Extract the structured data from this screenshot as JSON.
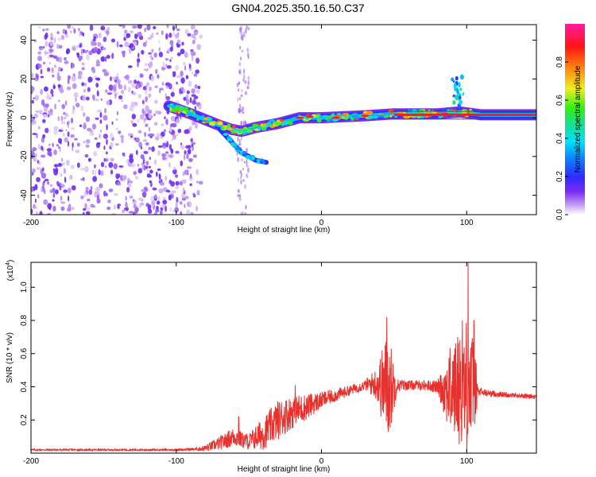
{
  "figure": {
    "title": "GN04.2025.350.16.50.C37"
  },
  "chart_data": [
    {
      "type": "heatmap",
      "name": "spectrogram",
      "xlabel": "Height of straight line (km)",
      "ylabel": "Frequency (Hz)",
      "xlim": [
        -200,
        148
      ],
      "ylim": [
        -50,
        48
      ],
      "x_ticks": [
        -200,
        -100,
        0,
        100
      ],
      "y_ticks": [
        40,
        20,
        0,
        -20,
        -40
      ],
      "grid": false,
      "colorbar": {
        "label": "Normalized spectral amplitude",
        "range": [
          0,
          1
        ],
        "ticks": [
          "0.0",
          "0.2",
          "0.4",
          "0.6",
          "0.8"
        ],
        "tick_values": [
          0,
          0.2,
          0.4,
          0.6,
          0.8
        ],
        "colormap": "rainbow (white-violet-blue-cyan-green-yellow-red-magenta)"
      },
      "features": [
        {
          "description": "broadband noise region",
          "x_range": [
            -200,
            -83
          ],
          "freq_range": [
            -50,
            48
          ],
          "amplitude": 0.1
        },
        {
          "description": "vertical noise streak",
          "x_range": [
            -58,
            -50
          ],
          "freq_range": [
            -50,
            48
          ],
          "amplitude": 0.05
        },
        {
          "description": "dominant tone track",
          "points": [
            [
              -105,
              6
            ],
            [
              -90,
              2
            ],
            [
              -70,
              -4
            ],
            [
              -62,
              -6
            ],
            [
              -55,
              -7
            ],
            [
              -45,
              -5
            ],
            [
              -30,
              -3
            ],
            [
              -15,
              0
            ],
            [
              0,
              0
            ],
            [
              30,
              1
            ],
            [
              50,
              2
            ],
            [
              80,
              2
            ],
            [
              95,
              3
            ],
            [
              110,
              1.5
            ],
            [
              148,
              1.5
            ]
          ],
          "amplitude_range": [
            0.2,
            1.0
          ]
        },
        {
          "description": "diverging branch",
          "points": [
            [
              -70,
              -6
            ],
            [
              -60,
              -14
            ],
            [
              -55,
              -18
            ],
            [
              -45,
              -22
            ],
            [
              -38,
              -23
            ]
          ],
          "amplitude_range": [
            0.2,
            0.4
          ]
        },
        {
          "description": "spike near 95 km",
          "points": [
            [
              95,
              2
            ],
            [
              95,
              21
            ]
          ],
          "amplitude_range": [
            0.2,
            0.5
          ]
        }
      ]
    },
    {
      "type": "line",
      "name": "snr",
      "xlabel": "Height of straight line (km)",
      "ylabel": "SNR (10 * v/v)",
      "y_scale_note": "(x10^4)",
      "y_scale_base": "(x10",
      "y_scale_exp": "4",
      "y_scale_close": ")",
      "xlim": [
        -200,
        148
      ],
      "ylim": [
        0,
        1.15
      ],
      "x_ticks": [
        -200,
        -100,
        0,
        100
      ],
      "y_ticks": [
        0.2,
        0.4,
        0.6,
        0.8,
        1.0
      ],
      "grid": false,
      "series": [
        {
          "name": "SNR",
          "color": "#e8302c",
          "envelope": {
            "x": [
              -200,
              -150,
              -100,
              -85,
              -80,
              -70,
              -60,
              -55,
              -50,
              -40,
              -30,
              -20,
              -10,
              0,
              10,
              20,
              30,
              38,
              45,
              48,
              52,
              60,
              70,
              80,
              88,
              95,
              100,
              105,
              108,
              115,
              130,
              148
            ],
            "mean": [
              0.02,
              0.02,
              0.02,
              0.025,
              0.03,
              0.06,
              0.1,
              0.08,
              0.07,
              0.12,
              0.2,
              0.25,
              0.28,
              0.32,
              0.35,
              0.38,
              0.41,
              0.42,
              0.4,
              0.4,
              0.41,
              0.41,
              0.41,
              0.4,
              0.38,
              0.4,
              0.38,
              0.4,
              0.37,
              0.36,
              0.35,
              0.34
            ],
            "spread": [
              0.005,
              0.005,
              0.005,
              0.01,
              0.02,
              0.04,
              0.06,
              0.05,
              0.05,
              0.1,
              0.12,
              0.1,
              0.08,
              0.05,
              0.04,
              0.03,
              0.03,
              0.1,
              0.33,
              0.25,
              0.04,
              0.03,
              0.03,
              0.04,
              0.25,
              0.35,
              0.45,
              0.3,
              0.03,
              0.02,
              0.015,
              0.015
            ]
          },
          "peaks": [
            {
              "x": 45,
              "y": 0.82
            },
            {
              "x": 97,
              "y": 0.8
            },
            {
              "x": 101,
              "y": 1.15
            },
            {
              "x": 105,
              "y": 0.8
            },
            {
              "x": -18,
              "y": 0.41
            },
            {
              "x": -57,
              "y": 0.22
            }
          ]
        }
      ]
    }
  ]
}
